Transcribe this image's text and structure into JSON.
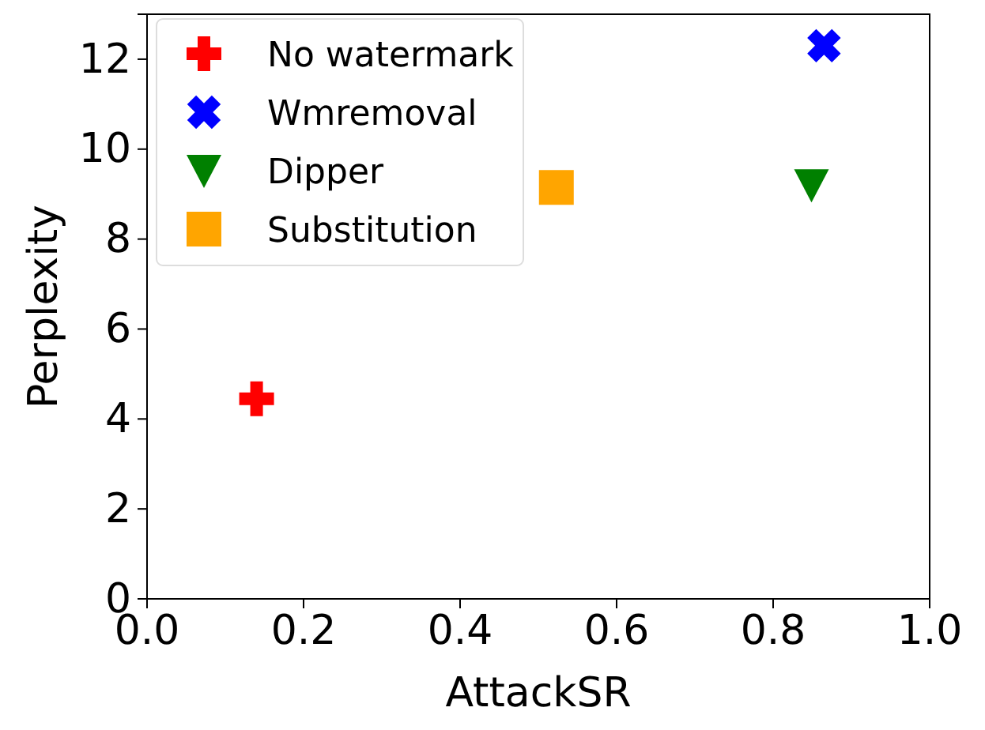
{
  "chart_data": {
    "type": "scatter",
    "xlabel": "AttackSR",
    "ylabel": "Perplexity",
    "xlim": [
      0,
      1
    ],
    "xticks": [
      {
        "value": 0,
        "label": "0.0"
      },
      {
        "value": 0.2,
        "label": "0.2"
      },
      {
        "value": 0.4,
        "label": "0.4"
      },
      {
        "value": 0.6,
        "label": "0.6"
      },
      {
        "value": 0.8,
        "label": "0.8"
      },
      {
        "value": 1,
        "label": "1.0"
      }
    ],
    "ylim": [
      0,
      13
    ],
    "yticks": [
      0,
      2,
      4,
      6,
      8,
      10,
      12
    ],
    "legend": "top left",
    "grid": false,
    "series": [
      {
        "name": "No watermark",
        "color": "#ff0000",
        "marker": "cross",
        "x": [
          0.14
        ],
        "values": [
          4.45
        ]
      },
      {
        "name": "Wmremoval",
        "color": "#0000ff",
        "marker": "x",
        "x": [
          0.865
        ],
        "values": [
          12.3
        ]
      },
      {
        "name": "Dipper",
        "color": "#008000",
        "marker": "triangle",
        "x": [
          0.849
        ],
        "values": [
          9.2
        ]
      },
      {
        "name": "Substitution",
        "color": "#ffa500",
        "marker": "square",
        "x": [
          0.523
        ],
        "values": [
          9.15
        ]
      }
    ]
  }
}
